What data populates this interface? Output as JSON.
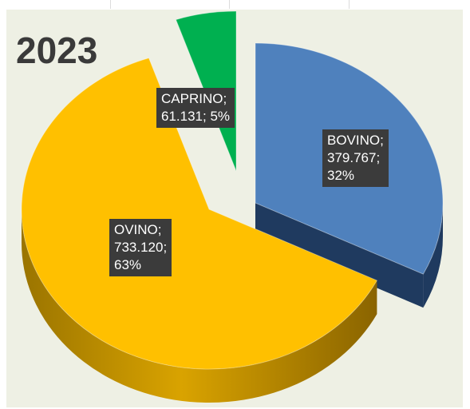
{
  "chart_data": {
    "type": "pie",
    "title": "2023",
    "slices": [
      {
        "category": "BOVINO",
        "value": 379767,
        "value_label": "379.767",
        "percent": "32%",
        "color": "#4f81bd"
      },
      {
        "category": "OVINO",
        "value": 733120,
        "value_label": "733.120",
        "percent": "63%",
        "color": "#ffc000"
      },
      {
        "category": "CAPRINO",
        "value": 61131,
        "value_label": "61.131",
        "percent": "5%",
        "color": "#00b050"
      }
    ]
  },
  "labels": {
    "bovino": [
      "BOVINO;",
      "379.767;",
      "32%"
    ],
    "ovino": [
      "OVINO;",
      "733.120;",
      "63%"
    ],
    "caprino": [
      "CAPRINO;",
      "61.131; 5%"
    ]
  }
}
